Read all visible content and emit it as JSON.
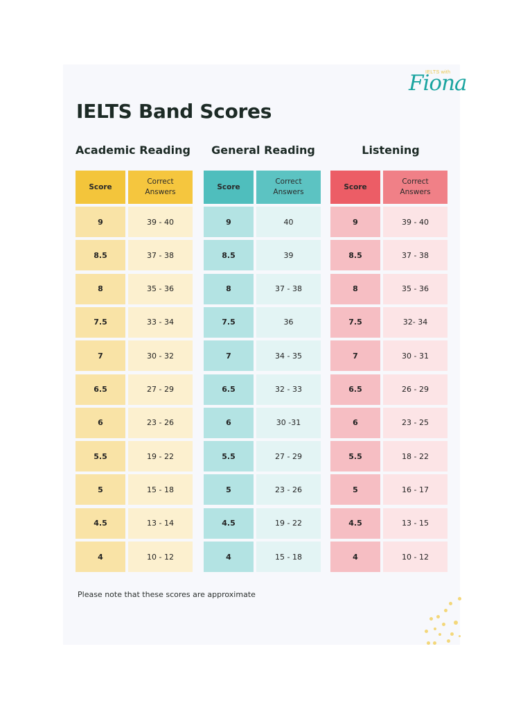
{
  "logo": {
    "small_text": "IELTS with",
    "script_text": "Fiona"
  },
  "title": "IELTS Band Scores",
  "colors": {
    "page_bg": "#ffffff",
    "card_bg": "#f7f8fc",
    "academic": {
      "header_score": "#f3c53b",
      "header_answers": "#f5c63e",
      "score": "#f9e3a6",
      "answers": "#fcf0cf"
    },
    "general": {
      "header_score": "#4fbebd",
      "header_answers": "#5cc3c2",
      "score": "#b3e3e3",
      "answers": "#e3f4f4"
    },
    "listening": {
      "header_score": "#ec5d66",
      "header_answers": "#f08087",
      "score": "#f6bec3",
      "answers": "#fce4e6"
    },
    "dots": "#f3d77a"
  },
  "headers": {
    "score": "Score",
    "answers_line1": "Correct",
    "answers_line2": "Answers"
  },
  "sections": [
    {
      "id": "academic",
      "title": "Academic Reading",
      "rows": [
        {
          "score": "9",
          "answers": "39 - 40"
        },
        {
          "score": "8.5",
          "answers": "37 - 38"
        },
        {
          "score": "8",
          "answers": "35 - 36"
        },
        {
          "score": "7.5",
          "answers": "33 - 34"
        },
        {
          "score": "7",
          "answers": "30 - 32"
        },
        {
          "score": "6.5",
          "answers": "27 - 29"
        },
        {
          "score": "6",
          "answers": "23 - 26"
        },
        {
          "score": "5.5",
          "answers": "19 - 22"
        },
        {
          "score": "5",
          "answers": "15 - 18"
        },
        {
          "score": "4.5",
          "answers": "13 - 14"
        },
        {
          "score": "4",
          "answers": "10 - 12"
        }
      ]
    },
    {
      "id": "general",
      "title": "General Reading",
      "rows": [
        {
          "score": "9",
          "answers": "40"
        },
        {
          "score": "8.5",
          "answers": "39"
        },
        {
          "score": "8",
          "answers": "37 - 38"
        },
        {
          "score": "7.5",
          "answers": "36"
        },
        {
          "score": "7",
          "answers": "34 - 35"
        },
        {
          "score": "6.5",
          "answers": "32 - 33"
        },
        {
          "score": "6",
          "answers": "30 -31"
        },
        {
          "score": "5.5",
          "answers": "27 - 29"
        },
        {
          "score": "5",
          "answers": "23 - 26"
        },
        {
          "score": "4.5",
          "answers": "19 - 22"
        },
        {
          "score": "4",
          "answers": "15 - 18"
        }
      ]
    },
    {
      "id": "listening",
      "title": "Listening",
      "rows": [
        {
          "score": "9",
          "answers": "39 - 40"
        },
        {
          "score": "8.5",
          "answers": "37 - 38"
        },
        {
          "score": "8",
          "answers": "35 - 36"
        },
        {
          "score": "7.5",
          "answers": "32- 34"
        },
        {
          "score": "7",
          "answers": "30 - 31"
        },
        {
          "score": "6.5",
          "answers": "26 - 29"
        },
        {
          "score": "6",
          "answers": "23 - 25"
        },
        {
          "score": "5.5",
          "answers": "18 - 22"
        },
        {
          "score": "5",
          "answers": "16 - 17"
        },
        {
          "score": "4.5",
          "answers": "13 - 15"
        },
        {
          "score": "4",
          "answers": "10 - 12"
        }
      ]
    }
  ],
  "note": "Please note that these scores are approximate"
}
